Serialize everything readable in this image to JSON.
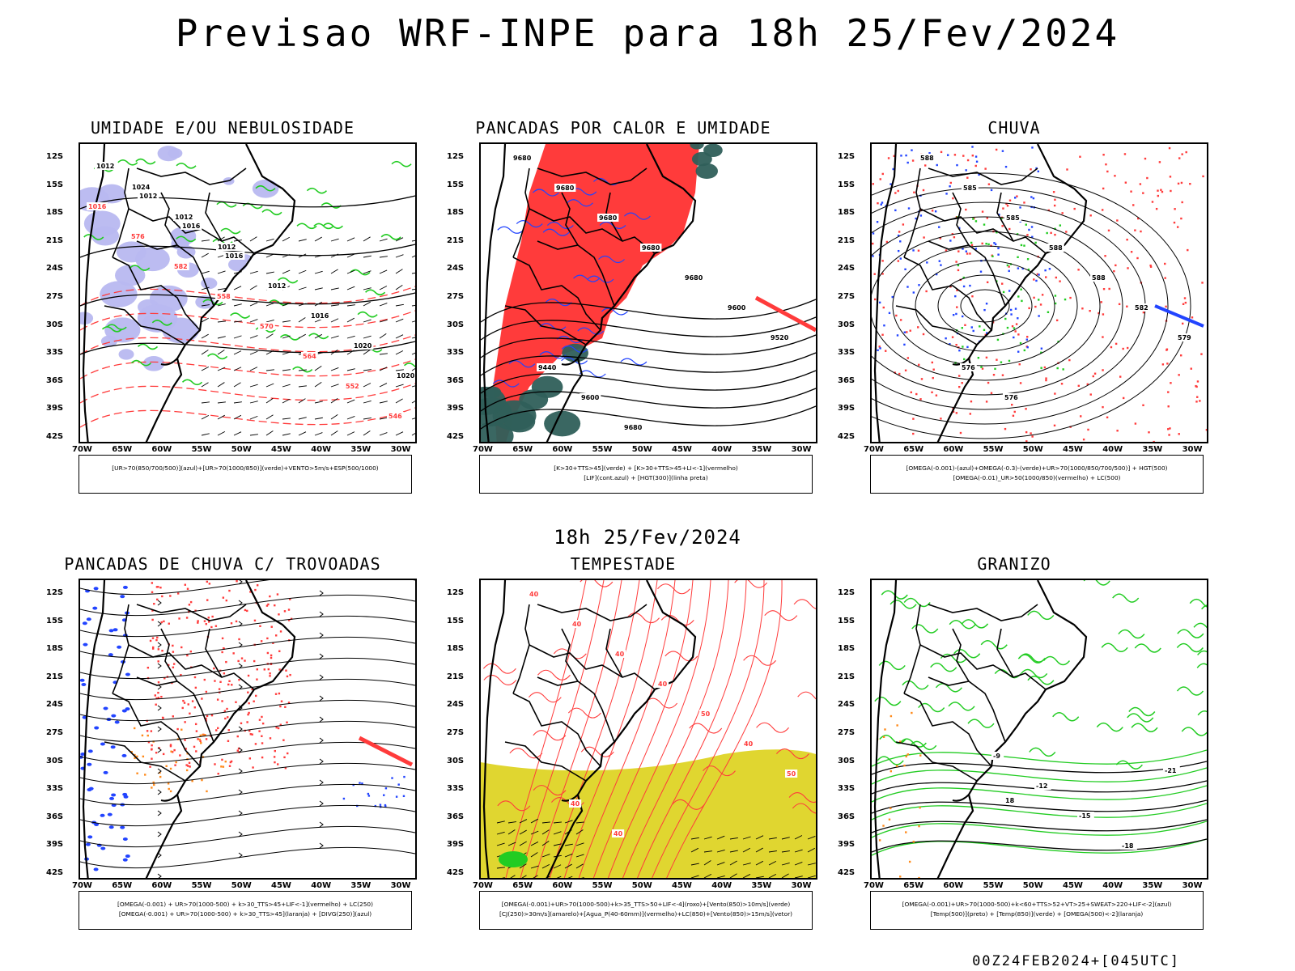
{
  "title": "Previsao WRF-INPE  para 18h 25/Fev/2024",
  "mid_label": "18h 25/Fev/2024",
  "footer": "00Z24FEB2024+[045UTC]",
  "lat_labels": [
    "12S",
    "15S",
    "18S",
    "21S",
    "24S",
    "27S",
    "30S",
    "33S",
    "36S",
    "39S",
    "42S"
  ],
  "lon_labels": [
    "70W",
    "65W",
    "60W",
    "55W",
    "50W",
    "45W",
    "40W",
    "35W",
    "30W"
  ],
  "colors": {
    "rh_high": "#b8b8f0",
    "rh_low": "#22cc22",
    "alert_red": "#ff3b3b",
    "storm_dark": "#2f5f5a",
    "lif_blue": "#2244ff",
    "cj_yellow": "#e0d630",
    "temp_green": "#22cc22",
    "orange": "#ff8a1a"
  },
  "panels": [
    {
      "id": "umidade",
      "title": "UMIDADE E/OU NEBULOSIDADE",
      "legend": [
        "[UR>70(850/700/500)](azul)+[UR>70(1000/850)](verde)+VENTO>5m/s+ESP(500/1000)"
      ],
      "labels": [
        "1012",
        "1012",
        "1016",
        "1016",
        "1012",
        "1016",
        "1020",
        "1020",
        "1024",
        "1012",
        "1012",
        "1016",
        "576",
        "582",
        "558",
        "570",
        "564",
        "552",
        "546"
      ]
    },
    {
      "id": "pancadas_calor",
      "title": "PANCADAS POR CALOR E UMIDADE",
      "legend": [
        "[K>30+TTS>45](verde) + [K>30+TTS>45+LI<-1](vermelho)",
        "[LIF](cont.azul) + [HGT(300)](linha preta)"
      ],
      "labels": [
        "9680",
        "9680",
        "9680",
        "9680",
        "9680",
        "9600",
        "9520",
        "9440",
        "9600",
        "9680"
      ]
    },
    {
      "id": "chuva",
      "title": "CHUVA",
      "legend": [
        "[OMEGA(-0.001)-(azul)+OMEGA(-0.3)-(verde)+UR>70(1000/850/700/500)] + HGT(500)",
        "[OMEGA(-0.01)_UR>50(1000/850)(vermelho) + LC(500)"
      ],
      "labels": [
        "588",
        "585",
        "585",
        "588",
        "588",
        "582",
        "579",
        "576",
        "576"
      ]
    },
    {
      "id": "pancadas_trovoadas",
      "title": "PANCADAS DE CHUVA C/ TROVOADAS",
      "legend": [
        "[OMEGA(-0.001) + UR>70(1000-500) + k>30_TTS>45+LIF<-1](vermelho) + LC(250)",
        "[OMEGA(-0.001) + UR>70(1000-500) + k>30_TTS>45](laranja) + [DIVG(250)](azul)"
      ],
      "labels": []
    },
    {
      "id": "tempestade",
      "title": "TEMPESTADE",
      "legend": [
        "[OMEGA(-0.001)+UR>70(1000-500)+k>35_TTS>50+LIF<-4](roxo)+[Vento(850)>10m/s](verde)",
        "[CJ(250)>30m/s](amarelo)+[Agua_P(40-60mm)](vermelho)+LC(850)+[Vento(850)>15m/s](vetor)"
      ],
      "labels": [
        "40",
        "40",
        "40",
        "40",
        "50",
        "40",
        "50",
        "40",
        "40"
      ]
    },
    {
      "id": "granizo",
      "title": "GRANIZO",
      "legend": [
        "[OMEGA(-0.001)+UR>70(1000-500)+k<60+TTS>52+VT>25+SWEAT>220+LIF<-2](azul)",
        "[Temp(500)](preto) + [Temp(850)](verde) + [OMEGA(500)<-2](laranja)"
      ],
      "labels": [
        "-9",
        "-12",
        "-15",
        "-18",
        "-21",
        "18"
      ]
    }
  ]
}
